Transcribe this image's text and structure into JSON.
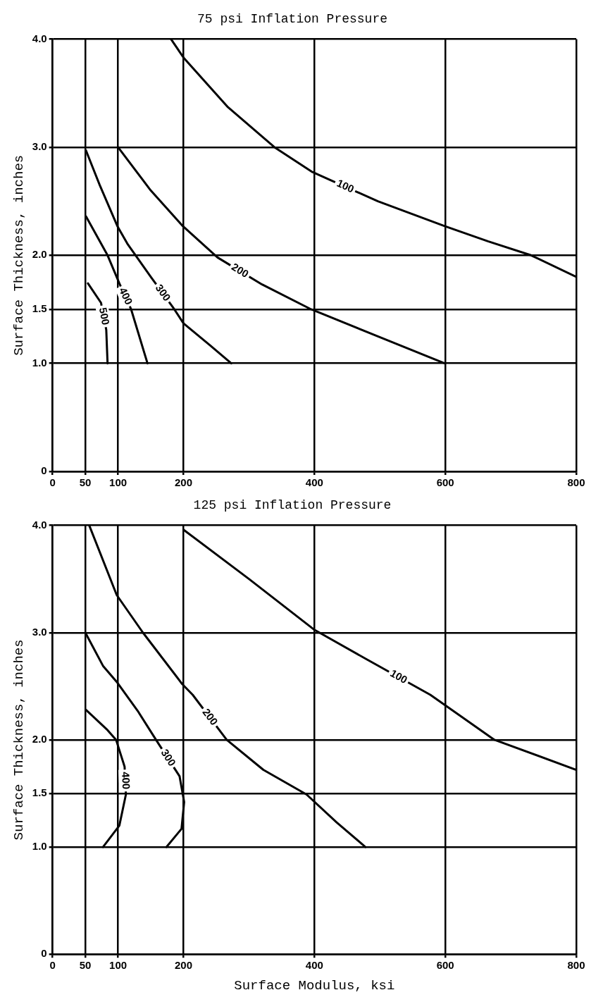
{
  "chart_data": [
    {
      "type": "line",
      "title": "75 psi Inflation Pressure",
      "ylabel": "Surface Thickness, inches",
      "xlim": [
        0,
        800
      ],
      "ylim": [
        0,
        4
      ],
      "xticks": [
        0,
        50,
        100,
        200,
        400,
        600,
        800
      ],
      "yticks": [
        0,
        {
          "value": 1,
          "label": "1.0"
        },
        {
          "value": 1.5,
          "label": "1.5"
        },
        {
          "value": 2,
          "label": "2.0"
        },
        {
          "value": 3,
          "label": "3.0"
        },
        {
          "value": 4,
          "label": "4.0"
        }
      ],
      "grid": true,
      "marker": "none",
      "line_style": "solid",
      "series": [
        {
          "name": "100",
          "color": "#000000",
          "x": [
            181,
            200,
            268,
            339,
            397,
            497,
            599,
            665,
            731,
            800
          ],
          "values": [
            4.0,
            3.83,
            3.37,
            3.0,
            2.77,
            2.5,
            2.27,
            2.13,
            2.0,
            1.8
          ]
        },
        {
          "name": "200",
          "color": "#000000",
          "x": [
            100,
            150,
            199,
            252,
            320,
            395,
            497,
            599
          ],
          "values": [
            3.0,
            2.6,
            2.27,
            1.98,
            1.73,
            1.5,
            1.25,
            1.0
          ]
        },
        {
          "name": "300",
          "color": "#000000",
          "x": [
            51,
            72,
            99,
            115,
            150,
            186,
            200,
            240,
            273
          ],
          "values": [
            2.97,
            2.65,
            2.27,
            2.1,
            1.8,
            1.5,
            1.37,
            1.17,
            1.0
          ]
        },
        {
          "name": "400",
          "color": "#000000",
          "x": [
            51,
            84,
            102,
            120,
            145
          ],
          "values": [
            2.36,
            2.0,
            1.74,
            1.5,
            1.0
          ]
        },
        {
          "name": "500",
          "color": "#000000",
          "x": [
            54,
            74,
            82,
            84
          ],
          "values": [
            1.74,
            1.56,
            1.31,
            1.0
          ]
        }
      ]
    },
    {
      "type": "line",
      "title": "125 psi Inflation Pressure",
      "xlabel": "Surface Modulus, ksi",
      "ylabel": "Surface Thickness, inches",
      "xlim": [
        0,
        800
      ],
      "ylim": [
        0,
        4
      ],
      "xticks": [
        0,
        50,
        100,
        200,
        400,
        600,
        800
      ],
      "yticks": [
        0,
        {
          "value": 1,
          "label": "1.0"
        },
        {
          "value": 1.5,
          "label": "1.5"
        },
        {
          "value": 2,
          "label": "2.0"
        },
        {
          "value": 3,
          "label": "3.0"
        },
        {
          "value": 4,
          "label": "4.0"
        }
      ],
      "grid": true,
      "marker": "none",
      "line_style": "solid",
      "series": [
        {
          "name": "100",
          "color": "#000000",
          "x": [
            200,
            300,
            399,
            480,
            577,
            675,
            800
          ],
          "values": [
            3.96,
            3.5,
            3.03,
            2.75,
            2.42,
            2.0,
            1.72
          ]
        },
        {
          "name": "200",
          "color": "#000000",
          "x": [
            56,
            98,
            138,
            198,
            214,
            266,
            322,
            388,
            434,
            478
          ],
          "values": [
            4.0,
            3.35,
            3.0,
            2.52,
            2.42,
            2.0,
            1.72,
            1.49,
            1.23,
            1.0
          ]
        },
        {
          "name": "300",
          "color": "#000000",
          "x": [
            50,
            77,
            98,
            130,
            158,
            194,
            201,
            197,
            174
          ],
          "values": [
            3.0,
            2.69,
            2.54,
            2.27,
            2.0,
            1.66,
            1.42,
            1.17,
            1.0
          ]
        },
        {
          "name": "400",
          "color": "#000000",
          "x": [
            51,
            84,
            97,
            110,
            112,
            102,
            77
          ],
          "values": [
            2.28,
            2.09,
            2.0,
            1.75,
            1.49,
            1.2,
            1.0
          ]
        }
      ]
    }
  ]
}
